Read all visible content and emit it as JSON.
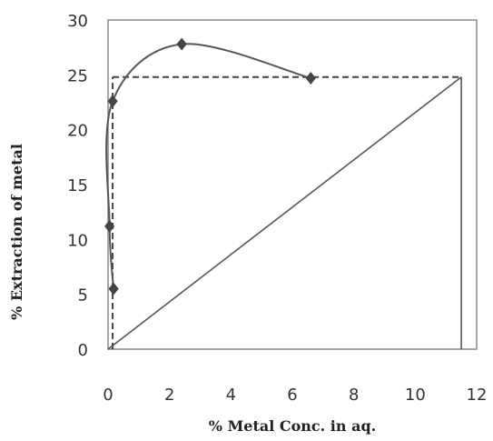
{
  "chart_data": {
    "type": "line",
    "title": "",
    "xlabel": "% Metal Conc. in aq.",
    "ylabel": "% Extraction of metal",
    "xlim": [
      0,
      12
    ],
    "ylim": [
      0,
      30
    ],
    "x_ticks": [
      "0",
      "2",
      "4",
      "6",
      "8",
      "10",
      "12"
    ],
    "y_ticks": [
      "0",
      "5",
      "10",
      "15",
      "20",
      "25",
      "30"
    ],
    "grid": false,
    "legend": "none",
    "colors": {
      "curve": "#555555",
      "marker": "#444444",
      "dashed": "#444444",
      "frame": "#888888"
    },
    "series": [
      {
        "type": "line-markers",
        "x": [
          0.18,
          0.05,
          0.15,
          2.4,
          6.6
        ],
        "y": [
          5.5,
          11.2,
          22.6,
          27.8,
          24.7
        ]
      },
      {
        "type": "line",
        "x": [
          0,
          11.5
        ],
        "y": [
          0,
          24.8
        ]
      }
    ],
    "annotations": {
      "dashed_guides": [
        {
          "x": [
            0.15,
            11.5
          ],
          "y": [
            24.8,
            24.8
          ]
        },
        {
          "x": [
            0.15,
            0.15
          ],
          "y": [
            0,
            24.8
          ]
        }
      ],
      "solid_guide": {
        "x": [
          11.5,
          11.5
        ],
        "y": [
          0,
          24.8
        ]
      }
    }
  }
}
